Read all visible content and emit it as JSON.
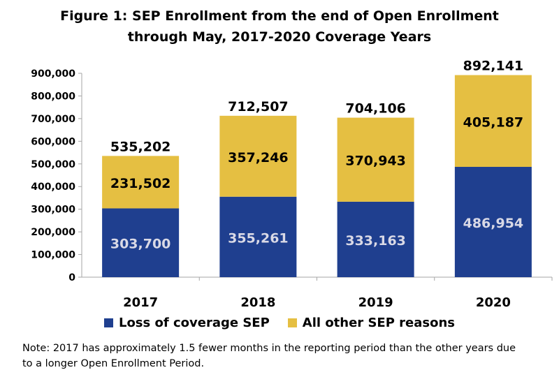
{
  "title": {
    "line1": "Figure 1: SEP Enrollment from the end of Open Enrollment",
    "line2": "through May, 2017-2020 Coverage Years"
  },
  "colors": {
    "loss": "#1f3f8f",
    "other": "#e5bf42",
    "axis": "#a6a6a6",
    "loss_label": "#d9d9e6"
  },
  "chart_data": {
    "type": "bar",
    "stacked": true,
    "categories": [
      "2017",
      "2018",
      "2019",
      "2020"
    ],
    "series": [
      {
        "name": "Loss of coverage SEP",
        "values": [
          303700,
          355261,
          333163,
          486954
        ]
      },
      {
        "name": "All other SEP reasons",
        "values": [
          231502,
          357246,
          370943,
          405187
        ]
      }
    ],
    "data_labels": {
      "loss": [
        "303,700",
        "355,261",
        "333,163",
        "486,954"
      ],
      "other": [
        "231,502",
        "357,246",
        "370,943",
        "405,187"
      ],
      "totals": [
        "535,202",
        "712,507",
        "704,106",
        "892,141"
      ]
    },
    "totals": [
      535202,
      712507,
      704106,
      892141
    ],
    "ylim": [
      0,
      900000
    ],
    "yticks": [
      0,
      100000,
      200000,
      300000,
      400000,
      500000,
      600000,
      700000,
      800000,
      900000
    ],
    "ytick_labels": [
      "0",
      "100,000",
      "200,000",
      "300,000",
      "400,000",
      "500,000",
      "600,000",
      "700,000",
      "800,000",
      "900,000"
    ],
    "grid": false,
    "legend_position": "bottom"
  },
  "footnote": "Note: 2017 has approximately 1.5 fewer months in the reporting period than the other years due to a longer Open Enrollment Period."
}
